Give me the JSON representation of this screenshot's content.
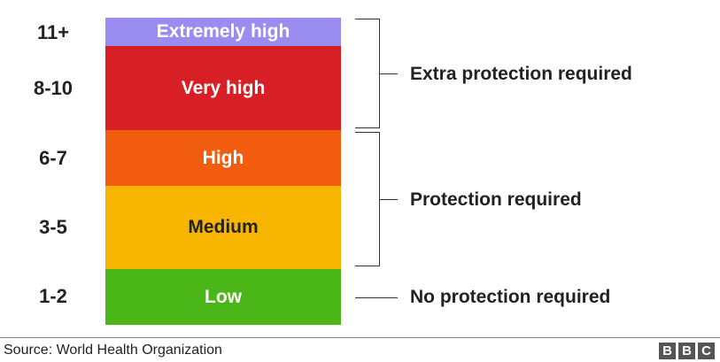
{
  "scale": [
    {
      "index": "11+",
      "level": "Extremely high",
      "color": "#9b8cf2",
      "text_color": "#ffffff"
    },
    {
      "index": "8-10",
      "level": "Very high",
      "color": "#d81f26",
      "text_color": "#ffffff"
    },
    {
      "index": "6-7",
      "level": "High",
      "color": "#f25c0f",
      "text_color": "#ffffff"
    },
    {
      "index": "3-5",
      "level": "Medium",
      "color": "#f7b500",
      "text_color": "#222222"
    },
    {
      "index": "1-2",
      "level": "Low",
      "color": "#4bb617",
      "text_color": "#ffffff"
    }
  ],
  "protection": {
    "extra": "Extra protection required",
    "required": "Protection required",
    "none": "No protection required"
  },
  "footer": {
    "source": "Source: World Health Organization",
    "logo": [
      "B",
      "B",
      "C"
    ]
  }
}
